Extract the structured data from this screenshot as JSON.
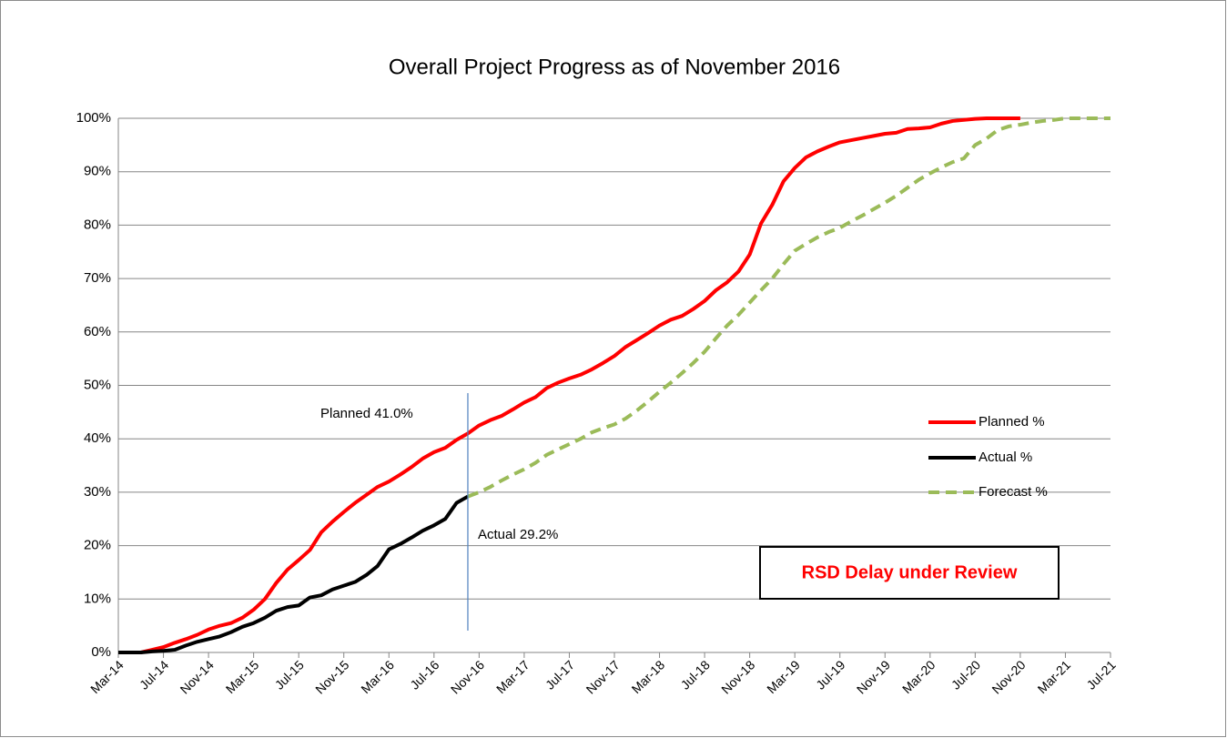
{
  "chart_data": {
    "type": "line",
    "title": "Overall Project Progress as of November 2016",
    "categories": [
      "Mar-14",
      null,
      null,
      null,
      "Jul-14",
      null,
      null,
      null,
      "Nov-14",
      null,
      null,
      null,
      "Mar-15",
      null,
      null,
      null,
      "Jul-15",
      null,
      null,
      null,
      "Nov-15",
      null,
      null,
      null,
      "Mar-16",
      null,
      null,
      null,
      "Jul-16",
      null,
      null,
      null,
      "Nov-16",
      null,
      null,
      null,
      "Mar-17",
      null,
      null,
      null,
      "Jul-17",
      null,
      null,
      null,
      "Nov-17",
      null,
      null,
      null,
      "Mar-18",
      null,
      null,
      null,
      "Jul-18",
      null,
      null,
      null,
      "Nov-18",
      null,
      null,
      null,
      "Mar-19",
      null,
      null,
      null,
      "Jul-19",
      null,
      null,
      null,
      "Nov-19",
      null,
      null,
      null,
      "Mar-20",
      null,
      null,
      null,
      "Jul-20",
      null,
      null,
      null,
      "Nov-20",
      null,
      null,
      null,
      "Mar-21",
      null,
      null,
      null,
      "Jul-21"
    ],
    "series": [
      {
        "name": "Planned %",
        "color": "#ff0000",
        "style": "solid",
        "values": [
          0,
          0,
          0,
          0.5,
          1,
          1.8,
          2.5,
          3.3,
          4.3,
          5,
          5.5,
          6.5,
          8,
          10,
          13,
          15.5,
          17.3,
          19.2,
          22.5,
          24.5,
          26.3,
          28,
          29.5,
          31,
          32,
          33.3,
          34.7,
          36.3,
          37.5,
          38.3,
          39.8,
          41,
          42.5,
          43.5,
          44.3,
          45.5,
          46.8,
          47.8,
          49.5,
          50.5,
          51.3,
          52,
          53,
          54.2,
          55.5,
          57.2,
          58.5,
          59.8,
          61.2,
          62.3,
          63,
          64.3,
          65.8,
          67.8,
          69.3,
          71.3,
          74.5,
          80.3,
          83.8,
          88.2,
          90.7,
          92.7,
          93.8,
          94.7,
          95.5,
          95.9,
          96.3,
          96.7,
          97.1,
          97.3,
          98,
          98.1,
          98.3,
          99,
          99.5,
          99.7,
          99.9,
          100,
          100,
          100,
          100,
          null,
          null,
          null,
          null,
          null,
          null,
          null,
          null
        ]
      },
      {
        "name": "Actual %",
        "color": "#000000",
        "style": "solid",
        "values": [
          0,
          0,
          0,
          0.2,
          0.3,
          0.5,
          1.3,
          2,
          2.5,
          3,
          3.8,
          4.8,
          5.5,
          6.5,
          7.8,
          8.5,
          8.8,
          10.3,
          10.7,
          11.8,
          12.5,
          13.2,
          14.5,
          16.2,
          19.3,
          20.3,
          21.5,
          22.8,
          23.8,
          25,
          28,
          29.2,
          null,
          null,
          null,
          null,
          null,
          null,
          null,
          null,
          null,
          null,
          null,
          null,
          null,
          null,
          null,
          null,
          null,
          null,
          null,
          null,
          null,
          null,
          null,
          null,
          null,
          null,
          null,
          null,
          null,
          null,
          null,
          null,
          null,
          null,
          null,
          null,
          null,
          null,
          null,
          null,
          null,
          null,
          null,
          null,
          null,
          null,
          null,
          null,
          null,
          null,
          null,
          null,
          null,
          null,
          null,
          null,
          null
        ]
      },
      {
        "name": "Forecast %",
        "color": "#9bbb59",
        "style": "dashed",
        "values": [
          null,
          null,
          null,
          null,
          null,
          null,
          null,
          null,
          null,
          null,
          null,
          null,
          null,
          null,
          null,
          null,
          null,
          null,
          null,
          null,
          null,
          null,
          null,
          null,
          null,
          null,
          null,
          null,
          null,
          null,
          null,
          29.2,
          30,
          31,
          32.2,
          33.3,
          34.3,
          35.5,
          37,
          38,
          39,
          40,
          41.2,
          42,
          42.7,
          43.8,
          45.3,
          47,
          48.8,
          50.5,
          52.3,
          54.2,
          56.3,
          58.8,
          61.2,
          63.2,
          65.5,
          67.8,
          70,
          72.7,
          75.2,
          76.5,
          77.7,
          78.7,
          79.5,
          80.7,
          81.8,
          83,
          84.2,
          85.5,
          87,
          88.5,
          89.7,
          90.8,
          91.8,
          92.5,
          95,
          96.2,
          97.8,
          98.5,
          98.8,
          99.2,
          99.5,
          99.7,
          100,
          100,
          100,
          100,
          100
        ]
      }
    ],
    "ylim": [
      0,
      100
    ],
    "yticks": [
      {
        "value": 0,
        "label": "0%"
      },
      {
        "value": 10,
        "label": "10%"
      },
      {
        "value": 20,
        "label": "20%"
      },
      {
        "value": 30,
        "label": "30%"
      },
      {
        "value": 40,
        "label": "40%"
      },
      {
        "value": 50,
        "label": "50%"
      },
      {
        "value": 60,
        "label": "60%"
      },
      {
        "value": 70,
        "label": "70%"
      },
      {
        "value": 80,
        "label": "80%"
      },
      {
        "value": 90,
        "label": "90%"
      },
      {
        "value": 100,
        "label": "100%"
      }
    ],
    "grid": true,
    "legend": "right",
    "annotations": {
      "planned": "Planned  41.0%",
      "actual": "Actual  29.2%",
      "box": "RSD Delay under Review"
    }
  }
}
